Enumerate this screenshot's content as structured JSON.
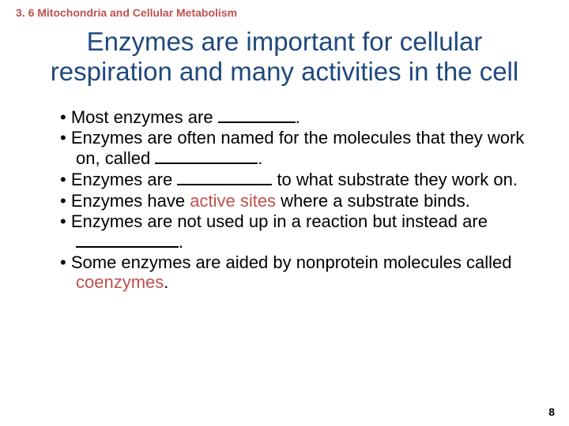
{
  "colors": {
    "section_header": "#c0504d",
    "title": "#1f497d",
    "bullet_text": "#000000",
    "highlight_text": "#c0504d",
    "page_number": "#000000",
    "background": "#ffffff"
  },
  "section_header": "3. 6 Mitochondria and Cellular Metabolism",
  "title": "Enzymes are important for cellular respiration and many activities in the cell",
  "bullets": [
    {
      "parts": [
        {
          "text": "Most enzymes are "
        },
        {
          "blank_width": 98
        },
        {
          "text": "."
        }
      ]
    },
    {
      "parts": [
        {
          "text": "Enzymes are often named for the molecules that they work on, called "
        },
        {
          "blank_width": 130
        },
        {
          "text": "."
        }
      ]
    },
    {
      "parts": [
        {
          "text": "Enzymes are "
        },
        {
          "blank_width": 120
        },
        {
          "text": " to what substrate they work on."
        }
      ]
    },
    {
      "parts": [
        {
          "text": "Enzymes have "
        },
        {
          "text": "active sites",
          "highlight": true
        },
        {
          "text": " where a substrate binds."
        }
      ]
    },
    {
      "parts": [
        {
          "text": "Enzymes are not used up in a reaction but instead are "
        },
        {
          "blank_width": 130
        },
        {
          "text": "."
        }
      ]
    },
    {
      "parts": [
        {
          "text": "Some enzymes are aided by nonprotein molecules called "
        },
        {
          "text": "coenzymes",
          "highlight": true
        },
        {
          "text": "."
        }
      ]
    }
  ],
  "page_number": "8"
}
